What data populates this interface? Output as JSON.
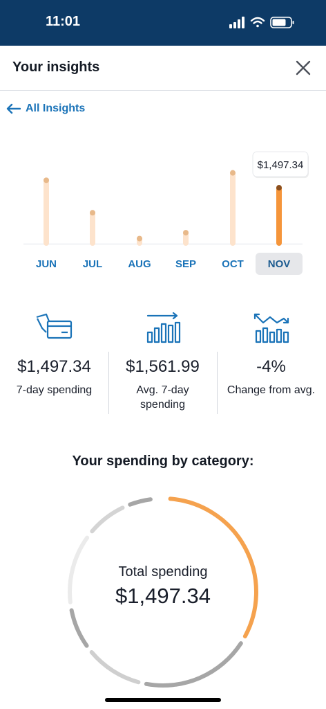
{
  "status_bar": {
    "time": "11:01"
  },
  "header": {
    "title": "Your insights"
  },
  "nav": {
    "back_label": "All Insights"
  },
  "chart_data": {
    "type": "bar",
    "categories": [
      "JUN",
      "JUL",
      "AUG",
      "SEP",
      "OCT",
      "NOV"
    ],
    "values": [
      1700,
      820,
      120,
      280,
      1900,
      1497.34
    ],
    "selected_index": 5,
    "tooltip": "$1,497.34",
    "ylim": [
      0,
      2100
    ],
    "colors": {
      "inactive": "#fde3cc",
      "inactive_dot": "#e8b98a",
      "active": "#f5953a",
      "active_dot": "#8a4f1f",
      "selected_tab_bg": "#e6e7ea",
      "label": "#1a73b8"
    }
  },
  "metrics": [
    {
      "icon": "credit-card-icon",
      "value": "$1,497.34",
      "label": "7-day spending"
    },
    {
      "icon": "bar-chart-arrow-icon",
      "value": "$1,561.99",
      "label": "Avg. 7-day spending"
    },
    {
      "icon": "trend-down-chart-icon",
      "value": "-4%",
      "label": "Change from avg."
    }
  ],
  "category": {
    "title": "Your spending by category:",
    "center_label": "Total spending",
    "total": "$1,497.34",
    "segments": [
      {
        "fraction": 0.33,
        "color": "#f5a24e"
      },
      {
        "fraction": 0.2,
        "color": "#a6a6a6"
      },
      {
        "fraction": 0.11,
        "color": "#cfcfcf"
      },
      {
        "fraction": 0.08,
        "color": "#a6a6a6"
      },
      {
        "fraction": 0.13,
        "color": "#ebebeb"
      },
      {
        "fraction": 0.08,
        "color": "#d4d4d4"
      },
      {
        "fraction": 0.05,
        "color": "#a6a6a6"
      }
    ]
  }
}
